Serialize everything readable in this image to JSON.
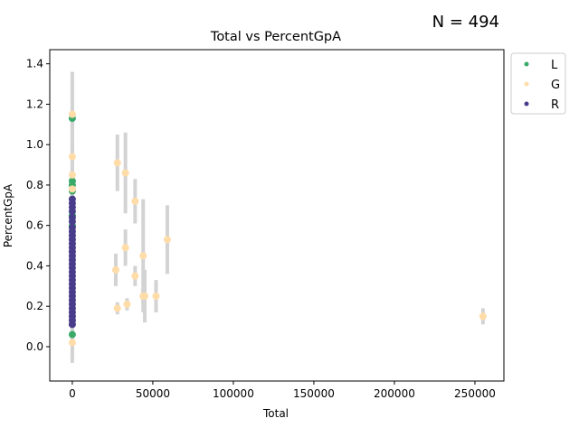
{
  "chart_data": {
    "type": "scatter",
    "title": "Total vs PercentGpA",
    "annotation": "N = 494",
    "xlabel": "Total",
    "ylabel": "PercentGpA",
    "xlim": [
      -14000,
      268000
    ],
    "ylim": [
      -0.17,
      1.47
    ],
    "x_ticks": [
      0,
      50000,
      100000,
      150000,
      200000,
      250000
    ],
    "x_tick_labels": [
      "0",
      "50000",
      "100000",
      "150000",
      "200000",
      "250000"
    ],
    "y_ticks": [
      0.0,
      0.2,
      0.4,
      0.6,
      0.8,
      1.0,
      1.2,
      1.4
    ],
    "y_tick_labels": [
      "0.0",
      "0.2",
      "0.4",
      "0.6",
      "0.8",
      "1.0",
      "1.2",
      "1.4"
    ],
    "grid": false,
    "legend_position": "outside-top-right",
    "series": [
      {
        "name": "L",
        "color": "#3aaa6a",
        "points": [
          {
            "x": 0,
            "y": 1.13,
            "err": 0.05
          },
          {
            "x": 0,
            "y": 0.82,
            "err": 0.06
          },
          {
            "x": 0,
            "y": 0.8,
            "err": 0.05
          },
          {
            "x": 0,
            "y": 0.77,
            "err": 0.05
          },
          {
            "x": 0,
            "y": 0.65,
            "err": 0.05
          },
          {
            "x": 0,
            "y": 0.6,
            "err": 0.05
          },
          {
            "x": 0,
            "y": 0.06,
            "err": 0.03
          }
        ]
      },
      {
        "name": "G",
        "color": "#ffdca8",
        "points": [
          {
            "x": 0,
            "y": 1.15,
            "err": 0.21
          },
          {
            "x": 0,
            "y": 0.94,
            "err": 0.2
          },
          {
            "x": 0,
            "y": 0.85,
            "err": 0.15
          },
          {
            "x": 0,
            "y": 0.78,
            "err": 0.1
          },
          {
            "x": 0,
            "y": 0.02,
            "err": 0.1
          },
          {
            "x": 28000,
            "y": 0.91,
            "err": 0.14
          },
          {
            "x": 33000,
            "y": 0.86,
            "err": 0.2
          },
          {
            "x": 39000,
            "y": 0.72,
            "err": 0.11
          },
          {
            "x": 27000,
            "y": 0.38,
            "err": 0.08
          },
          {
            "x": 33000,
            "y": 0.49,
            "err": 0.09
          },
          {
            "x": 39000,
            "y": 0.35,
            "err": 0.05
          },
          {
            "x": 44000,
            "y": 0.45,
            "err": 0.28
          },
          {
            "x": 59000,
            "y": 0.53,
            "err": 0.17
          },
          {
            "x": 44000,
            "y": 0.25,
            "err": 0.04
          },
          {
            "x": 45000,
            "y": 0.25,
            "err": 0.13
          },
          {
            "x": 52000,
            "y": 0.25,
            "err": 0.08
          },
          {
            "x": 28000,
            "y": 0.19,
            "err": 0.03
          },
          {
            "x": 34000,
            "y": 0.21,
            "err": 0.03
          },
          {
            "x": 255000,
            "y": 0.15,
            "err": 0.04
          }
        ]
      },
      {
        "name": "R",
        "color": "#483d8b",
        "points": [
          {
            "x": 0,
            "y": 0.73,
            "err": 0.05
          },
          {
            "x": 0,
            "y": 0.71,
            "err": 0.05
          },
          {
            "x": 0,
            "y": 0.69,
            "err": 0.04
          },
          {
            "x": 0,
            "y": 0.67,
            "err": 0.04
          },
          {
            "x": 0,
            "y": 0.64,
            "err": 0.04
          },
          {
            "x": 0,
            "y": 0.62,
            "err": 0.04
          },
          {
            "x": 0,
            "y": 0.59,
            "err": 0.04
          },
          {
            "x": 0,
            "y": 0.57,
            "err": 0.04
          },
          {
            "x": 0,
            "y": 0.55,
            "err": 0.04
          },
          {
            "x": 0,
            "y": 0.53,
            "err": 0.04
          },
          {
            "x": 0,
            "y": 0.51,
            "err": 0.04
          },
          {
            "x": 0,
            "y": 0.49,
            "err": 0.04
          },
          {
            "x": 0,
            "y": 0.47,
            "err": 0.04
          },
          {
            "x": 0,
            "y": 0.45,
            "err": 0.04
          },
          {
            "x": 0,
            "y": 0.43,
            "err": 0.04
          },
          {
            "x": 0,
            "y": 0.41,
            "err": 0.04
          },
          {
            "x": 0,
            "y": 0.39,
            "err": 0.04
          },
          {
            "x": 0,
            "y": 0.37,
            "err": 0.04
          },
          {
            "x": 0,
            "y": 0.35,
            "err": 0.04
          },
          {
            "x": 0,
            "y": 0.33,
            "err": 0.04
          },
          {
            "x": 0,
            "y": 0.31,
            "err": 0.04
          },
          {
            "x": 0,
            "y": 0.29,
            "err": 0.04
          },
          {
            "x": 0,
            "y": 0.27,
            "err": 0.04
          },
          {
            "x": 0,
            "y": 0.25,
            "err": 0.04
          },
          {
            "x": 0,
            "y": 0.23,
            "err": 0.04
          },
          {
            "x": 0,
            "y": 0.21,
            "err": 0.04
          },
          {
            "x": 0,
            "y": 0.19,
            "err": 0.04
          },
          {
            "x": 0,
            "y": 0.17,
            "err": 0.04
          },
          {
            "x": 0,
            "y": 0.15,
            "err": 0.04
          },
          {
            "x": 0,
            "y": 0.13,
            "err": 0.04
          },
          {
            "x": 0,
            "y": 0.11,
            "err": 0.03
          }
        ]
      }
    ],
    "error_bar_color": "#d3d3d3"
  }
}
